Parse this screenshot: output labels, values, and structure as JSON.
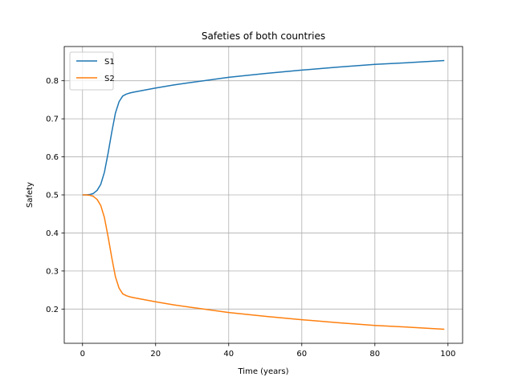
{
  "chart_data": {
    "type": "line",
    "title": "Safeties of both countries",
    "xlabel": "Time (years)",
    "ylabel": "Safety",
    "xlim": [
      -5,
      104
    ],
    "ylim": [
      0.11,
      0.89
    ],
    "xticks": [
      0,
      20,
      40,
      60,
      80,
      100
    ],
    "yticks": [
      0.2,
      0.3,
      0.4,
      0.5,
      0.6,
      0.7,
      0.8
    ],
    "grid": true,
    "legend_position": "top-left",
    "series": [
      {
        "name": "S1",
        "color": "#1f77b4",
        "x": [
          0,
          1,
          2,
          3,
          4,
          5,
          6,
          7,
          8,
          9,
          10,
          11,
          12,
          13,
          14,
          15,
          20,
          25,
          30,
          40,
          50,
          60,
          70,
          80,
          90,
          99
        ],
        "y": [
          0.5,
          0.5,
          0.501,
          0.504,
          0.512,
          0.528,
          0.56,
          0.61,
          0.665,
          0.715,
          0.745,
          0.76,
          0.765,
          0.768,
          0.77,
          0.772,
          0.781,
          0.789,
          0.796,
          0.809,
          0.819,
          0.828,
          0.836,
          0.843,
          0.848,
          0.853
        ]
      },
      {
        "name": "S2",
        "color": "#ff7f0e",
        "x": [
          0,
          1,
          2,
          3,
          4,
          5,
          6,
          7,
          8,
          9,
          10,
          11,
          12,
          13,
          14,
          15,
          20,
          25,
          30,
          40,
          50,
          60,
          70,
          80,
          90,
          99
        ],
        "y": [
          0.5,
          0.5,
          0.499,
          0.496,
          0.488,
          0.472,
          0.44,
          0.39,
          0.335,
          0.285,
          0.255,
          0.24,
          0.235,
          0.232,
          0.23,
          0.228,
          0.219,
          0.211,
          0.204,
          0.191,
          0.181,
          0.172,
          0.164,
          0.157,
          0.152,
          0.147
        ]
      }
    ]
  }
}
